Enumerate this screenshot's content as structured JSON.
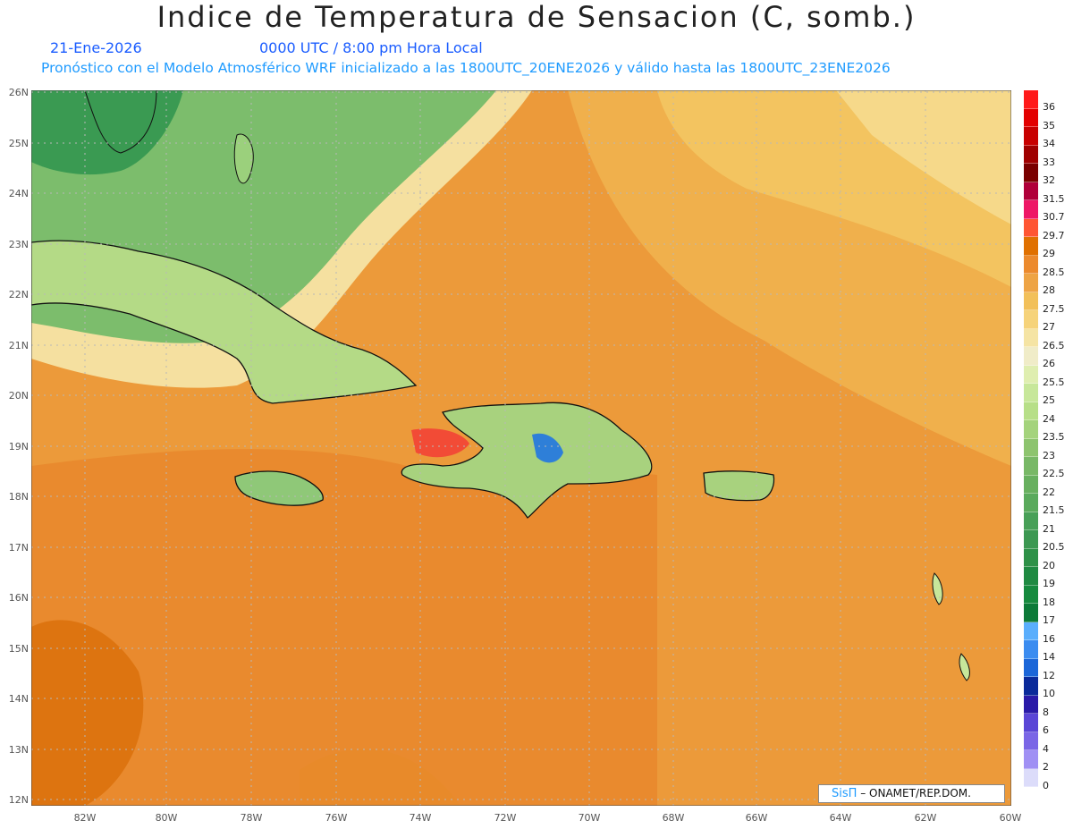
{
  "header": {
    "title": "Indice de Temperatura de Sensacion (C, somb.)",
    "date": "21-Ene-2026",
    "time": "0000 UTC / 8:00 pm Hora Local",
    "model_info": "Pronóstico con el Modelo Atmosférico WRF inicializado a las 1800UTC_20ENE2026 y válido hasta las  1800UTC_23ENE2026"
  },
  "axes": {
    "lat_labels": [
      "26N",
      "25N",
      "24N",
      "23N",
      "22N",
      "21N",
      "20N",
      "19N",
      "18N",
      "17N",
      "16N",
      "15N",
      "14N",
      "13N",
      "12N"
    ],
    "lon_labels": [
      "82W",
      "80W",
      "78W",
      "76W",
      "74W",
      "72W",
      "70W",
      "68W",
      "66W",
      "64W",
      "62W",
      "60W"
    ]
  },
  "colorbar": {
    "labels": [
      "36",
      "35",
      "34",
      "33",
      "32",
      "31.5",
      "30.7",
      "29.7",
      "29",
      "28.5",
      "28",
      "27.5",
      "27",
      "26.5",
      "26",
      "25.5",
      "25",
      "24",
      "23.5",
      "23",
      "22.5",
      "22",
      "21.5",
      "21",
      "20.5",
      "20",
      "19",
      "18",
      "17",
      "16",
      "14",
      "12",
      "10",
      "8",
      "6",
      "4",
      "2",
      "0"
    ],
    "colors": [
      "#ff1a1a",
      "#e30000",
      "#c80000",
      "#a00000",
      "#7a0000",
      "#b0003a",
      "#ee1766",
      "#ff5533",
      "#e07000",
      "#ec8a2d",
      "#eea445",
      "#f2c05a",
      "#f6d37a",
      "#f5e4a4",
      "#f0ecc8",
      "#dfeeb0",
      "#c7e79a",
      "#b7df88",
      "#a4d37c",
      "#8dc46e",
      "#78b866",
      "#68b05f",
      "#5aaa5c",
      "#48a058",
      "#3c9852",
      "#2e9148",
      "#1f8a42",
      "#168a3e",
      "#0c7a38",
      "#5aaefc",
      "#3b8cf0",
      "#1b66d8",
      "#0a2a9a",
      "#2a1aa8",
      "#5a46d6",
      "#7a66e6",
      "#a090f4",
      "#dcdcfa"
    ]
  },
  "credit": {
    "brand": "SisΠ",
    "text": " – ONAMET/REP.DOM."
  }
}
